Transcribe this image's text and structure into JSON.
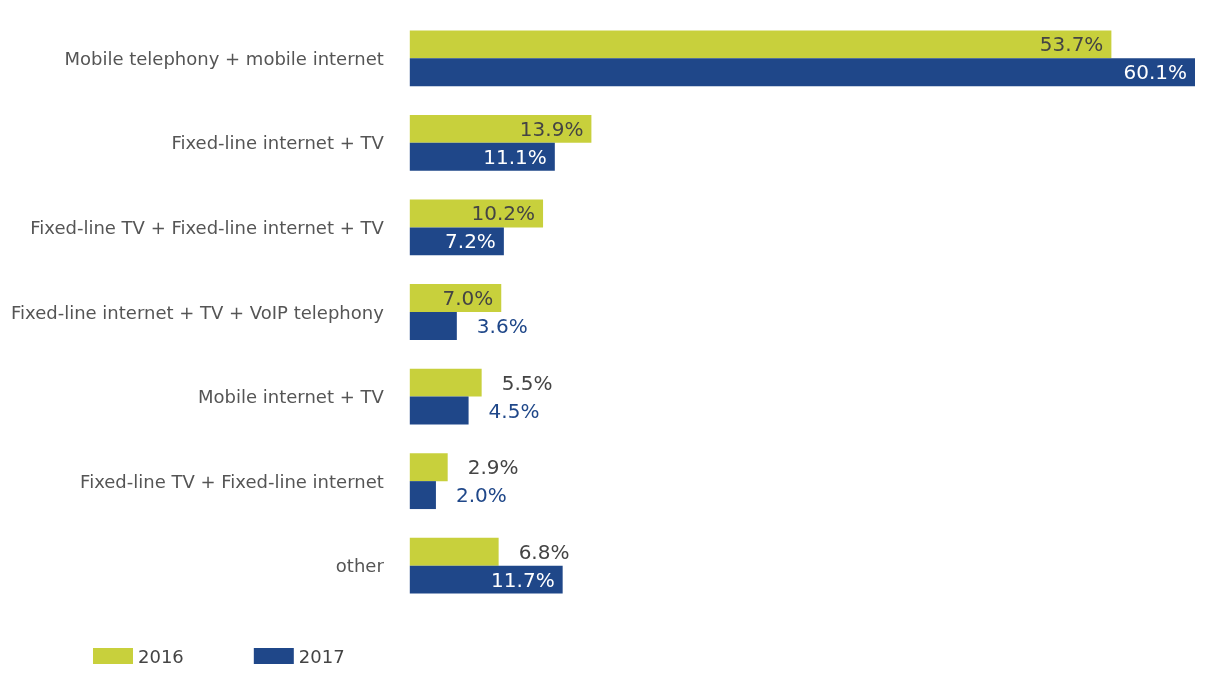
{
  "chart_data": {
    "type": "bar",
    "orientation": "horizontal",
    "categories": [
      "Mobile telephony + mobile internet",
      "Fixed-line internet + TV",
      "Fixed-line TV + Fixed-line internet + TV",
      "Fixed-line internet + TV + VoIP telephony",
      "Mobile internet + TV",
      "Fixed-line TV + Fixed-line internet",
      "other"
    ],
    "series": [
      {
        "name": "2016",
        "color": "#c8d03c",
        "values": [
          53.7,
          13.9,
          10.2,
          7.0,
          5.5,
          2.9,
          6.8
        ],
        "value_labels": [
          "53.7%",
          "13.9%",
          "10.2%",
          "7.0%",
          "5.5%",
          "2.9%",
          "6.8%"
        ]
      },
      {
        "name": "2017",
        "color": "#1f4789",
        "values": [
          60.1,
          11.1,
          7.2,
          3.6,
          4.5,
          2.0,
          11.7
        ],
        "value_labels": [
          "60.1%",
          "11.1%",
          "7.2%",
          "3.6%",
          "4.5%",
          "2.0%",
          "11.7%"
        ]
      }
    ],
    "legend": "bottom left"
  }
}
